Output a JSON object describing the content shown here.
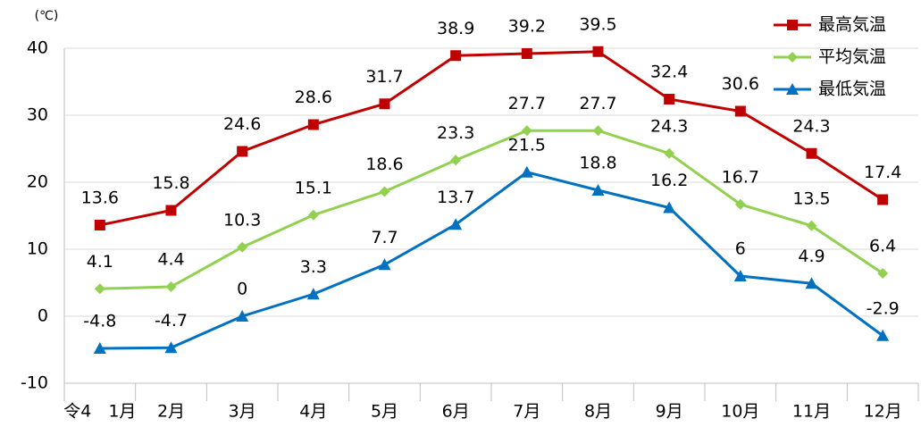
{
  "chart_data": {
    "type": "line",
    "y_unit_label": "(℃)",
    "categories": [
      "令4　1月",
      "2月",
      "3月",
      "4月",
      "5月",
      "6月",
      "7月",
      "8月",
      "9月",
      "10月",
      "11月",
      "12月"
    ],
    "series": [
      {
        "name": "最高気温",
        "color": "#c00000",
        "marker": "square",
        "values": [
          13.6,
          15.8,
          24.6,
          28.6,
          31.7,
          38.9,
          39.2,
          39.5,
          32.4,
          30.6,
          24.3,
          17.4
        ]
      },
      {
        "name": "平均気温",
        "color": "#92d050",
        "marker": "diamond",
        "values": [
          4.1,
          4.4,
          10.3,
          15.1,
          18.6,
          23.3,
          27.7,
          27.7,
          24.3,
          16.7,
          13.5,
          6.4
        ]
      },
      {
        "name": "最低気温",
        "color": "#0070c0",
        "marker": "triangle",
        "values": [
          -4.8,
          -4.7,
          0,
          3.3,
          7.7,
          13.7,
          21.5,
          18.8,
          16.2,
          6,
          4.9,
          -2.9
        ]
      }
    ],
    "ylim": [
      -10,
      40
    ],
    "yticks": [
      -10,
      0,
      10,
      20,
      30,
      40
    ],
    "grid": true,
    "legend": "top-right"
  }
}
